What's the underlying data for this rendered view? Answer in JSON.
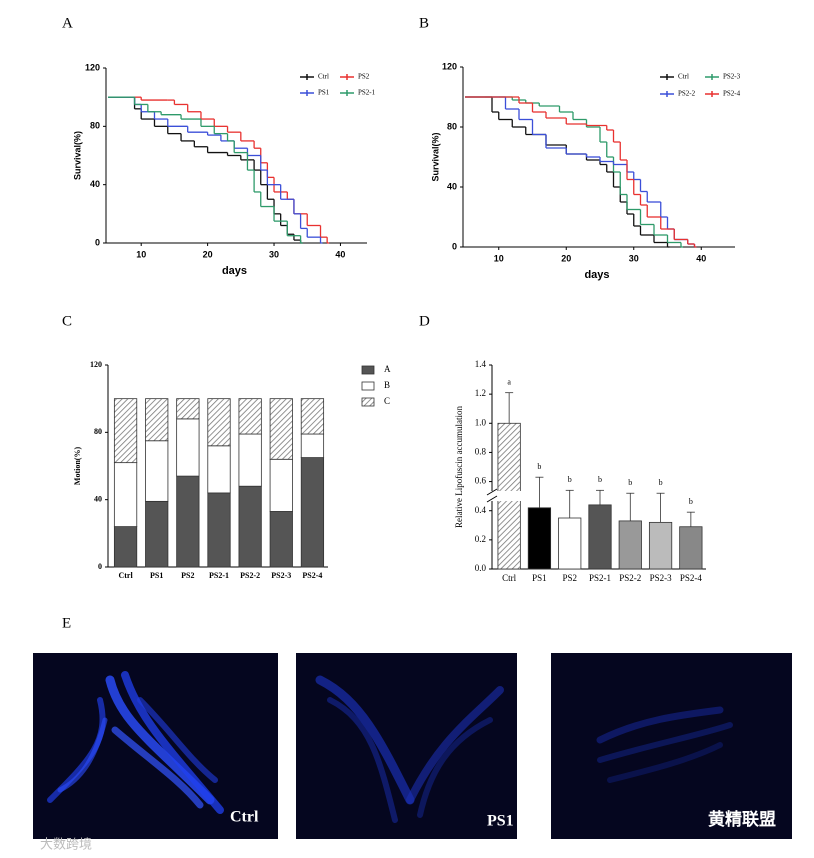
{
  "panel_labels": [
    "A",
    "B",
    "C",
    "D",
    "E"
  ],
  "chart_data": [
    {
      "type": "line",
      "step": true,
      "ylabel": "Survival(%)",
      "xlabel": "days",
      "xlim": [
        5,
        44
      ],
      "xticks": [
        10,
        20,
        30,
        40
      ],
      "ylim": [
        0,
        120
      ],
      "yticks": [
        0,
        40,
        80,
        120
      ],
      "series": [
        {
          "name": "Ctrl",
          "color": "#111111",
          "x": [
            5,
            8,
            9,
            10,
            12,
            14,
            16,
            18,
            20,
            23,
            25,
            27,
            28,
            29,
            30,
            31,
            32,
            33,
            34
          ],
          "values": [
            100,
            100,
            92,
            85,
            80,
            75,
            70,
            66,
            62,
            60,
            57,
            50,
            40,
            30,
            20,
            12,
            6,
            2,
            0
          ]
        },
        {
          "name": "PS2",
          "color": "#e8312f",
          "x": [
            5,
            8,
            10,
            14,
            15,
            17,
            19,
            21,
            23,
            25,
            27,
            28,
            29,
            30,
            32,
            33,
            35,
            37,
            38
          ],
          "values": [
            100,
            100,
            98,
            98,
            95,
            90,
            85,
            80,
            76,
            70,
            65,
            55,
            45,
            35,
            30,
            20,
            12,
            4,
            0
          ]
        },
        {
          "name": "PS1",
          "color": "#3b4fd8",
          "x": [
            5,
            8,
            9,
            10,
            12,
            14,
            17,
            20,
            22,
            24,
            26,
            28,
            29,
            31,
            33,
            34,
            35,
            37
          ],
          "values": [
            100,
            100,
            95,
            90,
            85,
            80,
            76,
            74,
            70,
            65,
            60,
            50,
            40,
            30,
            20,
            10,
            4,
            0
          ]
        },
        {
          "name": "PS2-1",
          "color": "#2e9a6a",
          "x": [
            5,
            8,
            9,
            11,
            13,
            16,
            19,
            21,
            23,
            24,
            26,
            27,
            28,
            30,
            32,
            34
          ],
          "values": [
            100,
            100,
            95,
            90,
            88,
            85,
            80,
            75,
            70,
            62,
            50,
            35,
            25,
            15,
            5,
            0
          ]
        }
      ]
    },
    {
      "type": "line",
      "step": true,
      "ylabel": "Survival(%)",
      "xlabel": "days",
      "xlim": [
        5,
        45
      ],
      "xticks": [
        10,
        20,
        30,
        40
      ],
      "ylim": [
        0,
        120
      ],
      "yticks": [
        0,
        40,
        80,
        120
      ],
      "series": [
        {
          "name": "Ctrl",
          "color": "#111111",
          "x": [
            5,
            8,
            9,
            10,
            12,
            14,
            17,
            20,
            23,
            25,
            26,
            27,
            28,
            29,
            30,
            31,
            33,
            35
          ],
          "values": [
            100,
            100,
            90,
            85,
            80,
            75,
            68,
            62,
            58,
            55,
            50,
            40,
            30,
            22,
            14,
            8,
            3,
            0
          ]
        },
        {
          "name": "PS2-3",
          "color": "#2e9a6a",
          "x": [
            5,
            10,
            12,
            14,
            16,
            19,
            21,
            23,
            25,
            26,
            27,
            28,
            29,
            31,
            33,
            35,
            37
          ],
          "values": [
            100,
            100,
            98,
            96,
            94,
            90,
            85,
            80,
            70,
            60,
            50,
            35,
            25,
            15,
            8,
            3,
            0
          ]
        },
        {
          "name": "PS2-2",
          "color": "#3b4fd8",
          "x": [
            5,
            9,
            11,
            13,
            15,
            17,
            20,
            23,
            25,
            27,
            29,
            30,
            31,
            32,
            34,
            35,
            36,
            38,
            39
          ],
          "values": [
            100,
            100,
            92,
            85,
            75,
            66,
            62,
            60,
            57,
            55,
            50,
            45,
            37,
            30,
            20,
            12,
            5,
            2,
            0
          ]
        },
        {
          "name": "PS2-4",
          "color": "#e8312f",
          "x": [
            5,
            10,
            13,
            15,
            17,
            20,
            23,
            26,
            27,
            28,
            29,
            30,
            31,
            32,
            34,
            36,
            38,
            39
          ],
          "values": [
            100,
            100,
            96,
            90,
            86,
            82,
            81,
            78,
            70,
            58,
            45,
            35,
            28,
            20,
            12,
            5,
            2,
            0
          ]
        }
      ]
    },
    {
      "type": "stacked-bar",
      "ylabel": "Motion(%)",
      "categories": [
        "Ctrl",
        "PS1",
        "PS2",
        "PS2-1",
        "PS2-2",
        "PS2-3",
        "PS2-4"
      ],
      "ylim": [
        0,
        120
      ],
      "yticks": [
        0,
        40,
        80,
        120
      ],
      "series": [
        {
          "name": "A",
          "color": "#555555",
          "values": [
            24,
            39,
            54,
            44,
            48,
            33,
            65
          ]
        },
        {
          "name": "B",
          "color": "#ffffff",
          "values": [
            38,
            36,
            34,
            28,
            31,
            31,
            14
          ]
        },
        {
          "name": "C",
          "color": "hatch",
          "values": [
            38,
            25,
            12,
            28,
            21,
            36,
            21
          ]
        }
      ]
    },
    {
      "type": "error-bar",
      "ylabel": "Relative Lipofuscin accumulation",
      "categories": [
        "Ctrl",
        "PS1",
        "PS2",
        "PS2-1",
        "PS2-2",
        "PS2-3",
        "PS2-4"
      ],
      "values": [
        1.0,
        0.42,
        0.35,
        0.44,
        0.33,
        0.32,
        0.29
      ],
      "errors": [
        0.21,
        0.21,
        0.19,
        0.1,
        0.19,
        0.2,
        0.1
      ],
      "colors": [
        "hatch",
        "#000000",
        "#ffffff",
        "#555555",
        "#999999",
        "#bbbbbb",
        "#888888"
      ],
      "annotations": [
        "a",
        "b",
        "b",
        "b",
        "b",
        "b",
        "b"
      ],
      "ylim": [
        0,
        1.4
      ],
      "yticks": [
        {
          "value": 0,
          "label": "0.0"
        },
        {
          "value": 0.2,
          "label": "0.2"
        },
        {
          "value": 0.4,
          "label": "0.4"
        },
        {
          "value": 0.6,
          "label": "0.6"
        },
        {
          "value": 0.8,
          "label": "0.8"
        },
        {
          "value": 1.0,
          "label": "1.0"
        },
        {
          "value": 1.2,
          "label": "1.2"
        },
        {
          "value": 1.4,
          "label": "1.4"
        }
      ]
    }
  ],
  "images": [
    {
      "label": "Ctrl"
    },
    {
      "label": "PS1"
    },
    {
      "label": null
    }
  ],
  "watermarks": [
    "大数跨境",
    "黄精联盟"
  ]
}
